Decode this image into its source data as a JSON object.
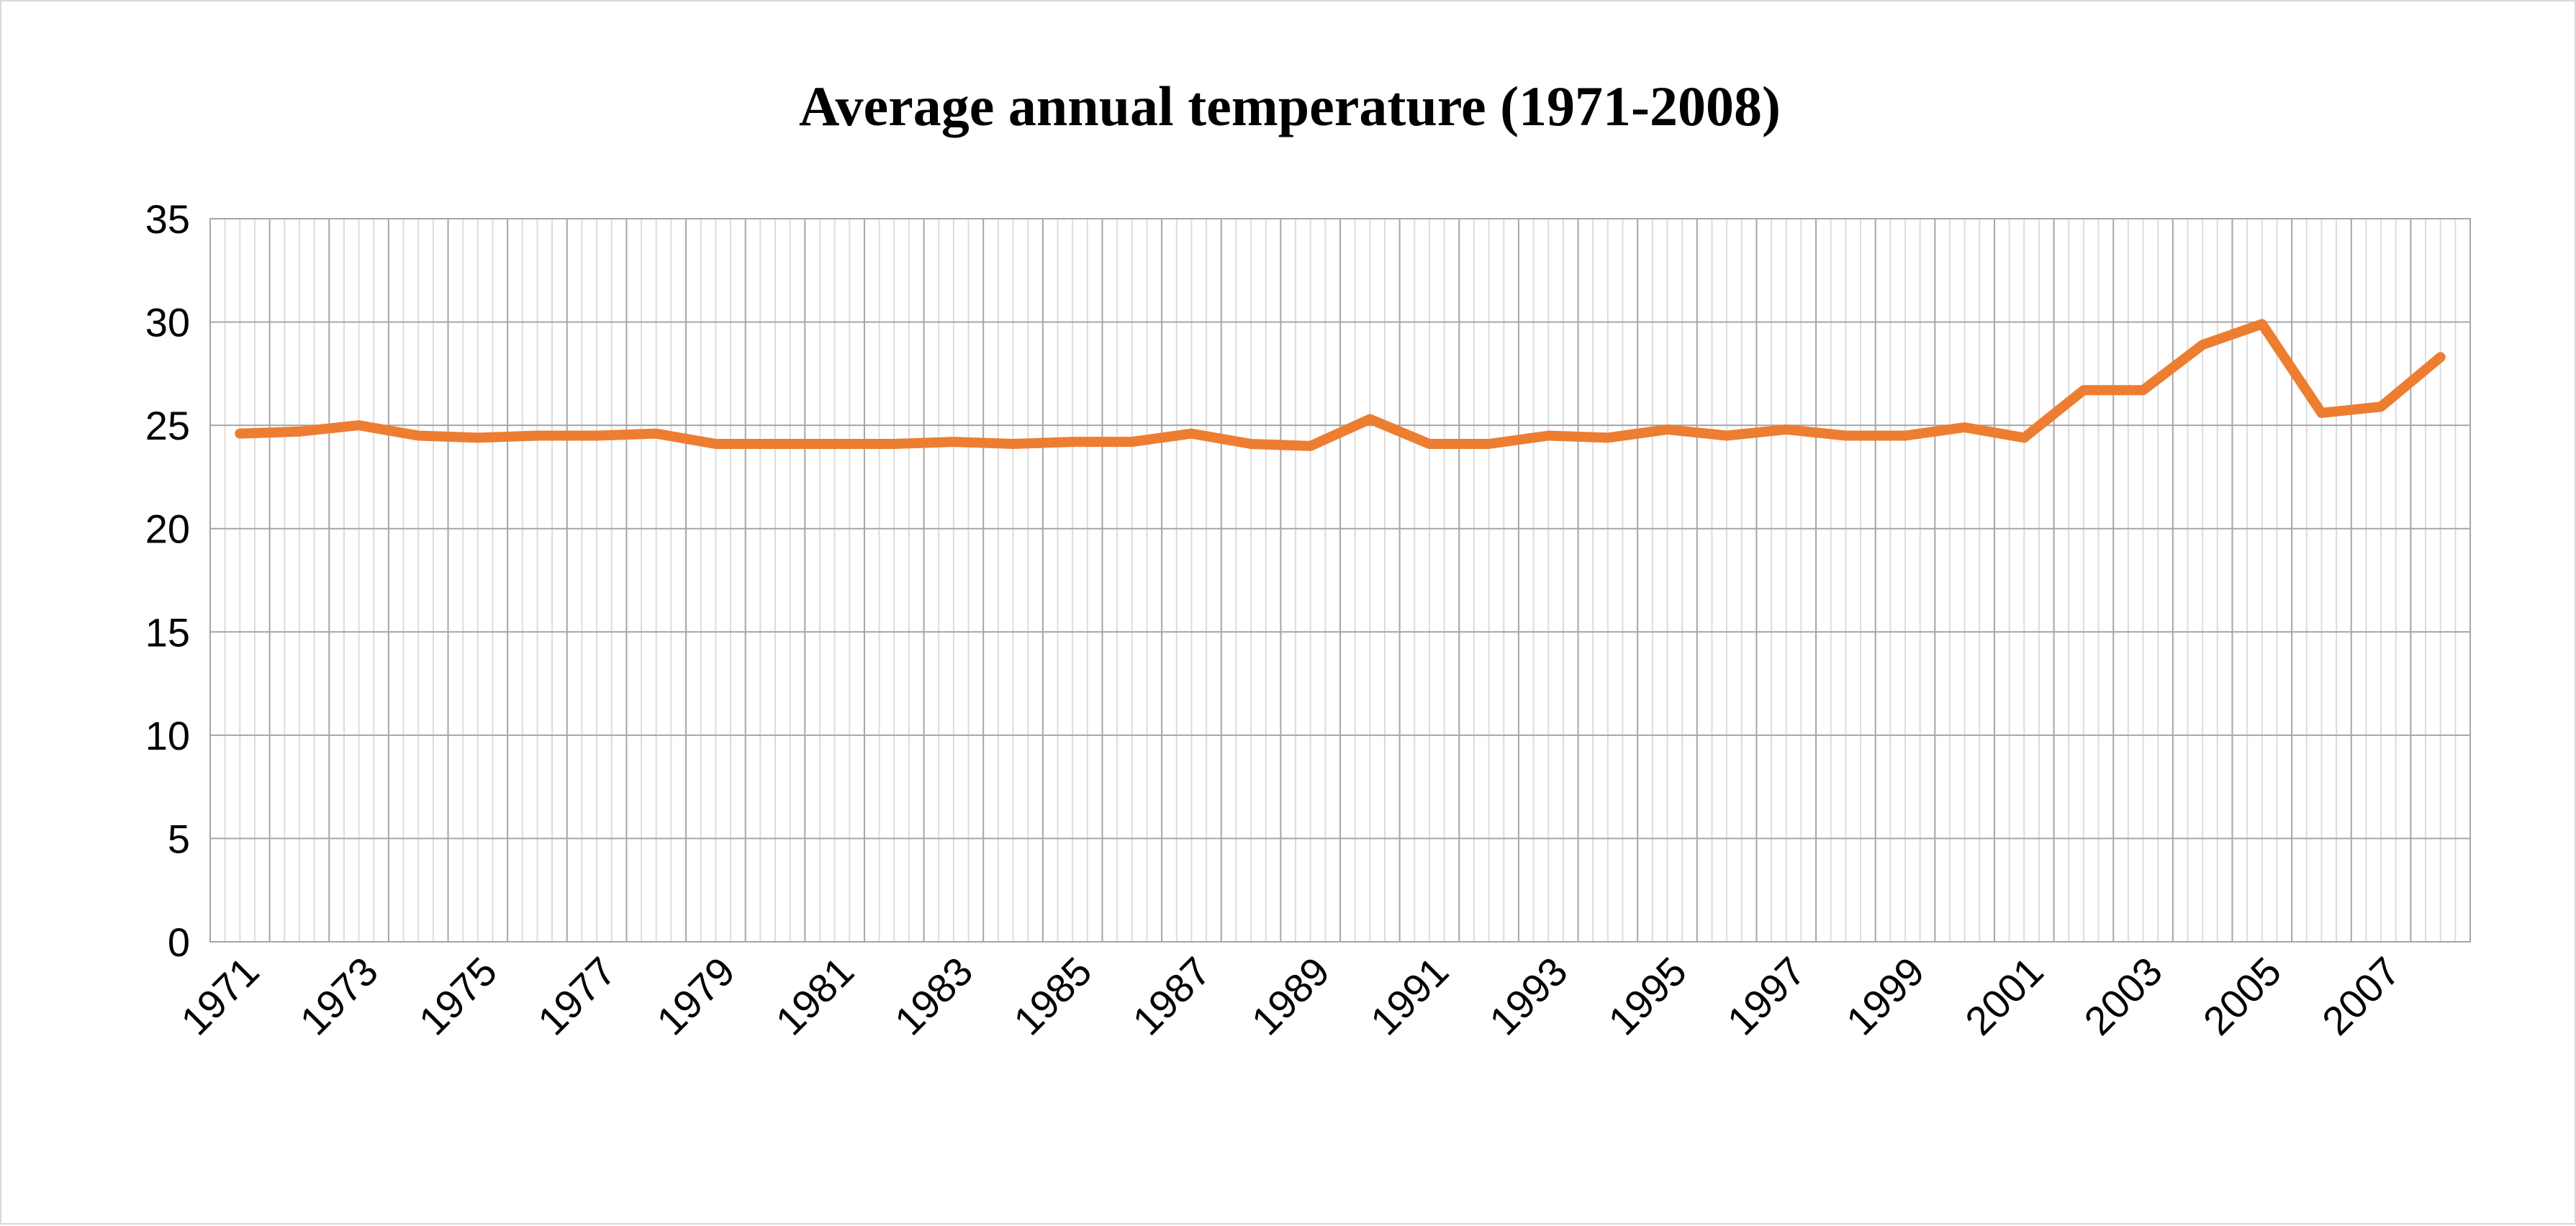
{
  "chart_data": {
    "type": "line",
    "title": "Average annual temperature (1971-2008)",
    "xlabel": "",
    "ylabel": "",
    "ylim": [
      0,
      35
    ],
    "y_ticks": [
      "0",
      "5",
      "10",
      "15",
      "20",
      "25",
      "30",
      "35"
    ],
    "grid": true,
    "legend": "none",
    "x_tick_labels": [
      "1971",
      "1973",
      "1975",
      "1977",
      "1979",
      "1981",
      "1983",
      "1985",
      "1987",
      "1989",
      "1991",
      "1993",
      "1995",
      "1997",
      "1999",
      "2001",
      "2003",
      "2005",
      "2007"
    ],
    "categories": [
      "1971",
      "1972",
      "1973",
      "1974",
      "1975",
      "1976",
      "1977",
      "1978",
      "1979",
      "1980",
      "1981",
      "1982",
      "1983",
      "1984",
      "1985",
      "1986",
      "1987",
      "1988",
      "1989",
      "1990",
      "1991",
      "1992",
      "1993",
      "1994",
      "1995",
      "1996",
      "1997",
      "1998",
      "1999",
      "2000",
      "2001",
      "2002",
      "2003",
      "2004",
      "2005",
      "2006",
      "2007",
      "2008"
    ],
    "series": [
      {
        "name": "Average annual temperature",
        "color": "#ED7D31",
        "values": [
          24.6,
          24.7,
          25.0,
          24.5,
          24.4,
          24.5,
          24.5,
          24.6,
          24.1,
          24.1,
          24.1,
          24.1,
          24.2,
          24.1,
          24.2,
          24.2,
          24.6,
          24.1,
          24.0,
          25.3,
          24.1,
          24.1,
          24.5,
          24.4,
          24.8,
          24.5,
          24.8,
          24.5,
          24.5,
          24.9,
          24.4,
          26.7,
          26.7,
          28.9,
          29.9,
          25.6,
          25.9,
          28.3
        ]
      }
    ]
  }
}
